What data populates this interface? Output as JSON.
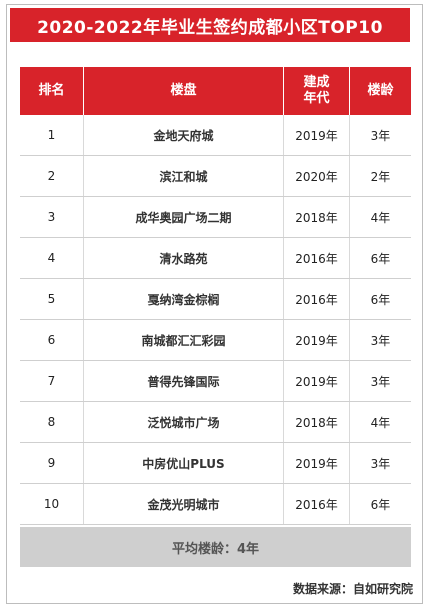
{
  "title": "2020-2022年毕业生签约成都小区TOP10",
  "headers": {
    "rank": "排名",
    "name": "楼盘",
    "year": "建成\n年代",
    "age": "楼龄"
  },
  "rows": [
    {
      "rank": "1",
      "name": "金地天府城",
      "year": "2019年",
      "age": "3年"
    },
    {
      "rank": "2",
      "name": "滨江和城",
      "year": "2020年",
      "age": "2年"
    },
    {
      "rank": "3",
      "name": "成华奥园广场二期",
      "year": "2018年",
      "age": "4年"
    },
    {
      "rank": "4",
      "name": "清水路苑",
      "year": "2016年",
      "age": "6年"
    },
    {
      "rank": "5",
      "name": "戛纳湾金棕榈",
      "year": "2016年",
      "age": "6年"
    },
    {
      "rank": "6",
      "name": "南城都汇汇彩园",
      "year": "2019年",
      "age": "3年"
    },
    {
      "rank": "7",
      "name": "普得先锋国际",
      "year": "2019年",
      "age": "3年"
    },
    {
      "rank": "8",
      "name": "泛悦城市广场",
      "year": "2018年",
      "age": "4年"
    },
    {
      "rank": "9",
      "name": "中房优山PLUS",
      "year": "2019年",
      "age": "3年"
    },
    {
      "rank": "10",
      "name": "金茂光明城市",
      "year": "2016年",
      "age": "6年"
    }
  ],
  "average": "平均楼龄：4年",
  "source": "数据来源：自如研究院",
  "colors": {
    "accent": "#d8232a",
    "footer_bg": "#cfcfcf"
  }
}
